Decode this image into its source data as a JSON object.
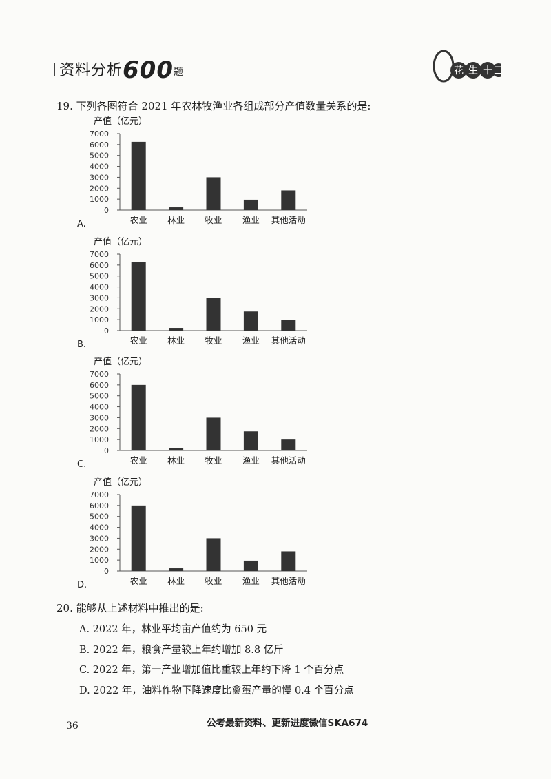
{
  "header": {
    "title": "资料分析",
    "number": "600",
    "suffix": "题",
    "logo_text": "花生十三"
  },
  "q19": {
    "number": "19.",
    "text": "下列各图符合 2021 年农林牧渔业各组成部分产值数量关系的是:"
  },
  "chart_data": [
    {
      "type": "bar",
      "option": "A.",
      "ylabel": "产值（亿元）",
      "categories": [
        "农业",
        "林业",
        "牧业",
        "渔业",
        "其他活动"
      ],
      "values": [
        6250,
        250,
        3000,
        950,
        1800
      ],
      "ylim": [
        0,
        7000
      ],
      "yticks": [
        "0",
        "1000",
        "2000",
        "3000",
        "4000",
        "5000",
        "6000",
        "7000"
      ]
    },
    {
      "type": "bar",
      "option": "B.",
      "ylabel": "产值（亿元）",
      "categories": [
        "农业",
        "林业",
        "牧业",
        "渔业",
        "其他活动"
      ],
      "values": [
        6250,
        250,
        3000,
        1750,
        950
      ],
      "ylim": [
        0,
        7000
      ],
      "yticks": [
        "0",
        "1000",
        "2000",
        "3000",
        "4000",
        "5000",
        "6000",
        "7000"
      ]
    },
    {
      "type": "bar",
      "option": "C.",
      "ylabel": "产值（亿元）",
      "categories": [
        "农业",
        "林业",
        "牧业",
        "渔业",
        "其他活动"
      ],
      "values": [
        6000,
        250,
        3000,
        1750,
        1000
      ],
      "ylim": [
        0,
        7000
      ],
      "yticks": [
        "0",
        "1000",
        "2000",
        "3000",
        "4000",
        "5000",
        "6000",
        "7000"
      ]
    },
    {
      "type": "bar",
      "option": "D.",
      "ylabel": "产值（亿元）",
      "categories": [
        "农业",
        "林业",
        "牧业",
        "渔业",
        "其他活动"
      ],
      "values": [
        6000,
        250,
        3000,
        950,
        1800
      ],
      "ylim": [
        0,
        7000
      ],
      "yticks": [
        "0",
        "1000",
        "2000",
        "3000",
        "4000",
        "5000",
        "6000",
        "7000"
      ]
    }
  ],
  "q20": {
    "number": "20.",
    "text": "能够从上述材料中推出的是:",
    "options": [
      "A. 2022 年，林业平均亩产值约为 650 元",
      "B. 2022 年，粮食产量较上年约增加 8.8 亿斤",
      "C. 2022 年，第一产业增加值比重较上年约下降 1 个百分点",
      "D. 2022 年，油料作物下降速度比禽蛋产量的慢 0.4 个百分点"
    ]
  },
  "footer": {
    "page": "36",
    "text": "公考最新资料、更新进度微信SKA674"
  },
  "colors": {
    "bar": "#333333",
    "axis": "#555555"
  }
}
